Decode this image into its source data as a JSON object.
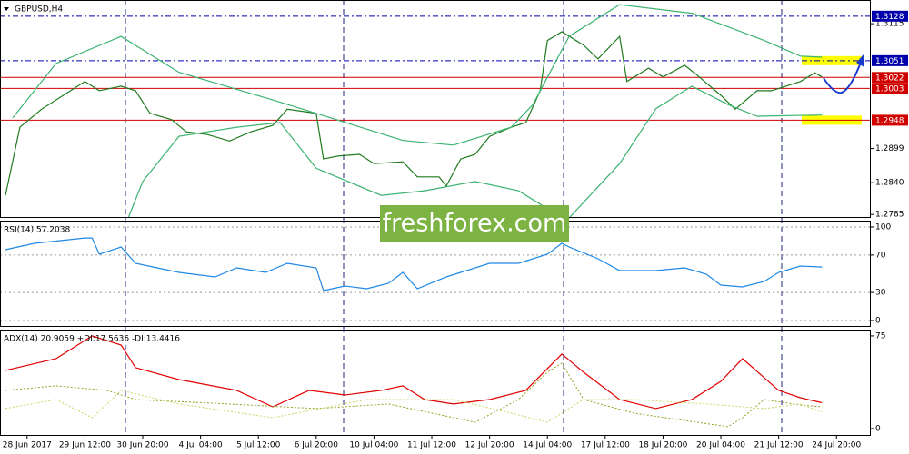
{
  "watermark": "freshforex.com",
  "chart_data": [
    {
      "type": "line",
      "title": "GBPUSD,H4",
      "xlim": [
        -0.75,
        119.75
      ],
      "ylim": [
        1.2779,
        1.3156
      ],
      "yticks": [
        1.3115,
        1.2899,
        {
          "value": 1.284,
          "label": "1.2840"
        },
        1.2785
      ],
      "levels": [
        {
          "value": 1.3128,
          "color": "#0000aa",
          "style": "dashed",
          "highlight": false
        },
        {
          "value": 1.3051,
          "color": "#0000aa",
          "style": "dashed",
          "highlight": true
        },
        {
          "value": 1.3022,
          "color": "#d00000",
          "style": "solid",
          "highlight": false
        },
        {
          "value": 1.3003,
          "color": "#d00000",
          "style": "solid",
          "highlight": false
        },
        {
          "value": 1.2948,
          "color": "#d00000",
          "style": "solid",
          "highlight": true
        }
      ],
      "series": [
        {
          "color": "#1f7a1f",
          "dash": false,
          "x": [
            0,
            2,
            5,
            8,
            11,
            13,
            16,
            18,
            20,
            23,
            25,
            28,
            31,
            34,
            37,
            39,
            43,
            44,
            46,
            49,
            51,
            55,
            57,
            60,
            61,
            63,
            65,
            67,
            70,
            72,
            74,
            75,
            77,
            80,
            82,
            85,
            86,
            89,
            91,
            94,
            96,
            99,
            101,
            104,
            106,
            108,
            110,
            112,
            113
          ],
          "values": [
            1.2818,
            1.2936,
            1.2967,
            1.2991,
            1.3015,
            1.2999,
            1.3007,
            1.2999,
            1.296,
            1.2949,
            1.2928,
            1.2923,
            1.2912,
            1.2928,
            1.2939,
            1.2967,
            1.296,
            1.2881,
            1.2886,
            1.2889,
            1.2873,
            1.2876,
            1.285,
            1.285,
            1.2834,
            1.2881,
            1.2889,
            1.292,
            1.2936,
            1.2944,
            1.2999,
            1.3086,
            1.3101,
            1.3078,
            1.3054,
            1.3093,
            1.3015,
            1.3038,
            1.3023,
            1.3043,
            1.3023,
            1.2991,
            1.2967,
            1.2999,
            1.2999,
            1.3007,
            1.3015,
            1.303,
            1.3023
          ]
        },
        {
          "color": "#3cb371",
          "dash": false,
          "x": [
            1,
            7,
            16,
            24,
            37,
            43,
            55,
            62,
            70,
            73,
            78,
            85,
            95,
            105,
            110,
            113
          ],
          "values": [
            1.2952,
            1.3046,
            1.3093,
            1.3031,
            1.2983,
            1.296,
            1.2913,
            1.2905,
            1.2936,
            1.2975,
            1.3093,
            1.3148,
            1.3133,
            1.3086,
            1.3059,
            1.3057
          ]
        },
        {
          "color": "#3cb371",
          "dash": false,
          "x": [
            17,
            19,
            24,
            32,
            38,
            43,
            52,
            58,
            65,
            71,
            75,
            78,
            85,
            90,
            95,
            100,
            104,
            113
          ],
          "values": [
            1.2779,
            1.2842,
            1.292,
            1.2936,
            1.2944,
            1.2865,
            1.2818,
            1.2826,
            1.2842,
            1.2826,
            1.2795,
            1.2779,
            1.2873,
            1.2968,
            1.3007,
            1.2975,
            1.2955,
            1.2957
          ]
        }
      ]
    },
    {
      "type": "line",
      "title": "RSI(14) 57.2038",
      "xlim": [
        -0.75,
        119.75
      ],
      "ylim": [
        -6.8,
        106.8
      ],
      "yticks": [
        100,
        70,
        30,
        0
      ],
      "grid": true,
      "series": [
        {
          "color": "#1e88e5",
          "dash": false,
          "x": [
            0,
            4,
            11,
            12,
            13,
            16,
            18,
            21,
            24,
            29,
            32,
            36,
            39,
            43,
            44,
            47,
            50,
            53,
            55,
            57,
            61,
            63,
            67,
            71,
            75,
            77,
            78,
            82,
            85,
            90,
            94,
            97,
            99,
            102,
            105,
            107,
            110,
            113
          ],
          "values": [
            75.7,
            82.5,
            88.3,
            88.3,
            70.9,
            78.6,
            61.2,
            56.3,
            51.5,
            46.6,
            56.3,
            51.5,
            61.2,
            56.3,
            32.0,
            36.9,
            34.0,
            39.8,
            51.5,
            34.0,
            46.6,
            51.5,
            61.2,
            61.2,
            70.9,
            82.5,
            78.6,
            66.0,
            53.4,
            53.4,
            56.3,
            49.5,
            37.9,
            35.9,
            41.7,
            51.5,
            58.3,
            57.2
          ]
        }
      ]
    },
    {
      "type": "line",
      "title": "ADX(14) 20.9059 +DI:17.5636 -DI:13.4416",
      "xlim": [
        -0.75,
        119.75
      ],
      "ylim": [
        -5.9,
        80.1
      ],
      "yticks": [
        75,
        0
      ],
      "xticks": [
        {
          "value": 3,
          "label": "28 Jun 2017"
        },
        {
          "value": 11,
          "label": "29 Jun 12:00"
        },
        {
          "value": 19,
          "label": "30 Jun 20:00"
        },
        {
          "value": 27,
          "label": "4 Jul 04:00"
        },
        {
          "value": 35,
          "label": "5 Jul 12:00"
        },
        {
          "value": 43,
          "label": "6 Jul 20:00"
        },
        {
          "value": 51,
          "label": "10 Jul 04:00"
        },
        {
          "value": 59,
          "label": "11 Jul 12:00"
        },
        {
          "value": 67,
          "label": "12 Jul 20:00"
        },
        {
          "value": 75,
          "label": "14 Jul 04:00"
        },
        {
          "value": 83,
          "label": "17 Jul 12:00"
        },
        {
          "value": 91,
          "label": "18 Jul 20:00"
        },
        {
          "value": 99,
          "label": "20 Jul 04:00"
        },
        {
          "value": 107,
          "label": "21 Jul 12:00"
        },
        {
          "value": 115,
          "label": "24 Jul 20:00"
        }
      ],
      "series": [
        {
          "color": "#e00000",
          "dash": false,
          "x": [
            0,
            7,
            12,
            16,
            18,
            24,
            32,
            37,
            42,
            47,
            52,
            55,
            58,
            62,
            67,
            72,
            77,
            80,
            85,
            90,
            95,
            99,
            102,
            107,
            110,
            113
          ],
          "values": [
            47.1,
            56.6,
            75.0,
            67.6,
            49.3,
            39.7,
            30.9,
            17.6,
            30.9,
            27.2,
            30.9,
            34.6,
            23.5,
            19.9,
            23.5,
            30.9,
            60.3,
            45.6,
            23.5,
            16.2,
            23.5,
            38.2,
            56.6,
            30.9,
            25.0,
            20.9
          ]
        },
        {
          "color": "#9aa020",
          "dash": true,
          "x": [
            0,
            7,
            14,
            18,
            31,
            43,
            53,
            65,
            71,
            75,
            77,
            80,
            87,
            100,
            102,
            105,
            110,
            113
          ],
          "values": [
            30.9,
            34.6,
            30.9,
            23.5,
            19.9,
            16.2,
            19.9,
            5.1,
            23.5,
            45.6,
            52.9,
            23.5,
            12.5,
            1.5,
            8.8,
            23.5,
            19.1,
            17.6
          ]
        },
        {
          "color": "#ccd46a",
          "dash": true,
          "x": [
            0,
            7,
            12,
            16,
            24,
            37,
            50,
            62,
            70,
            75,
            80,
            87,
            97,
            105,
            110,
            113
          ],
          "values": [
            16.2,
            23.5,
            8.8,
            30.9,
            19.9,
            8.8,
            23.5,
            23.5,
            12.5,
            5.1,
            23.5,
            23.5,
            19.9,
            16.2,
            19.9,
            13.4
          ]
        }
      ]
    }
  ]
}
